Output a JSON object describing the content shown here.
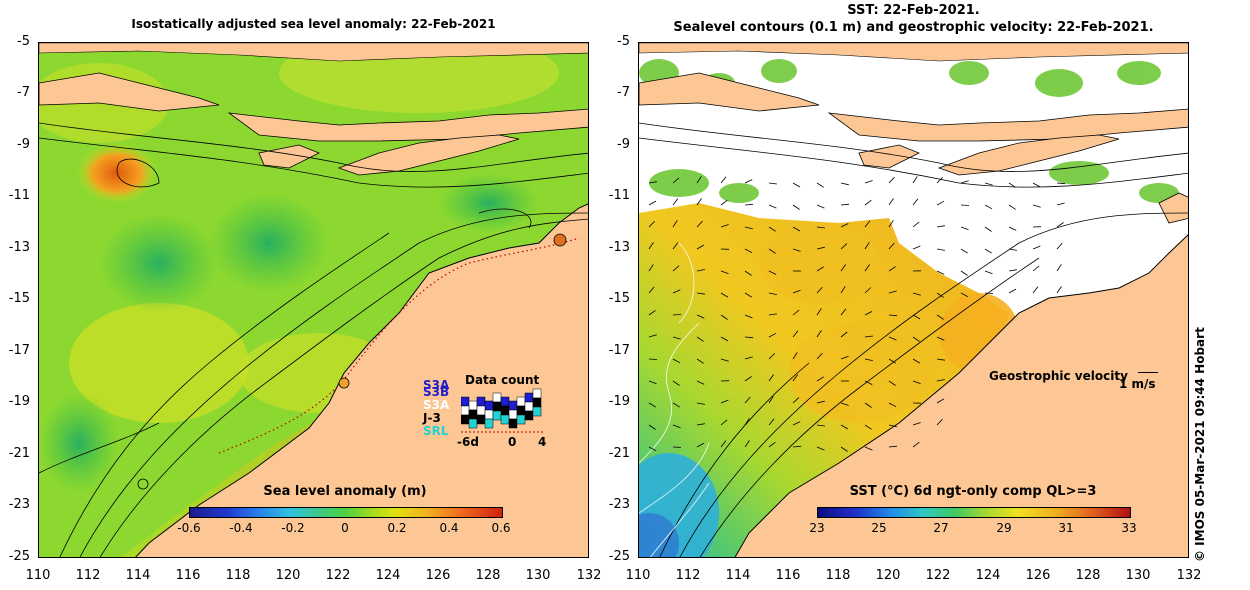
{
  "left_panel": {
    "title": "Isostatically adjusted sea level anomaly: 22-Feb-2021",
    "colorbar": {
      "title": "Sea level anomaly (m)",
      "labels": [
        "-0.6",
        "-0.4",
        "-0.2",
        "0",
        "0.2",
        "0.4",
        "0.6"
      ]
    },
    "data_count": {
      "title": "Data count",
      "satellites": [
        {
          "label": "S3A",
          "color": "#1e1ecf"
        },
        {
          "label": "S3B",
          "color": "#1e1ecf"
        },
        {
          "label": "S3A",
          "color": "#ffffff"
        },
        {
          "label": "J-3",
          "color": "#000000"
        },
        {
          "label": "SRL",
          "color": "#22d3d3"
        }
      ],
      "axis_labels": [
        "-6d",
        "0",
        "4"
      ]
    }
  },
  "right_panel": {
    "title_line1": "SST: 22-Feb-2021.",
    "title_line2": "Sealevel contours (0.1 m) and geostrophic velocity: 22-Feb-2021.",
    "colorbar": {
      "title": "SST (°C) 6d ngt-only comp QL>=3",
      "labels": [
        "23",
        "25",
        "27",
        "29",
        "31",
        "33"
      ]
    },
    "velocity_legend": {
      "label": "Geostrophic velocity",
      "scale": "1 m/s"
    }
  },
  "axes": {
    "y_ticks": [
      "-5",
      "-7",
      "-9",
      "-11",
      "-13",
      "-15",
      "-17",
      "-19",
      "-21",
      "-23",
      "-25"
    ],
    "x_ticks": [
      "110",
      "112",
      "114",
      "116",
      "118",
      "120",
      "122",
      "124",
      "126",
      "128",
      "130",
      "132"
    ]
  },
  "credit": "© IMOS 05-Mar-2021 09:44 Hobart",
  "colors": {
    "land": "#fcc794",
    "sla_dominant": "#86d91f",
    "sst_dominant": "#f0c020",
    "background": "#ffffff"
  }
}
